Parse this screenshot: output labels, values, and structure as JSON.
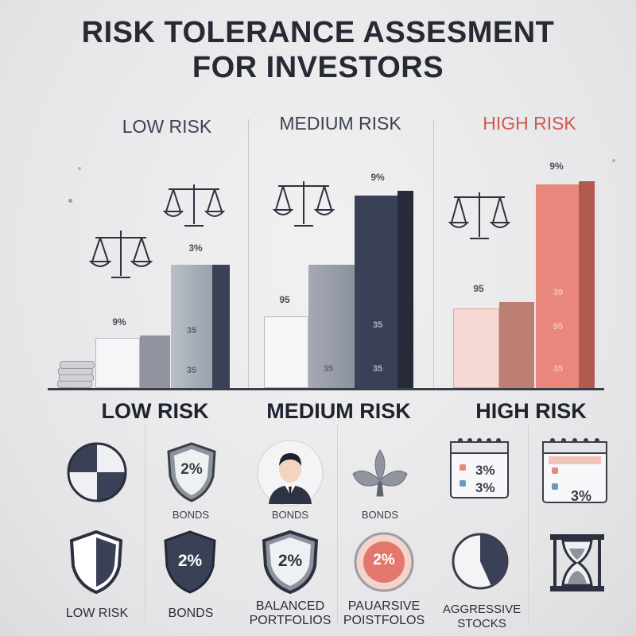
{
  "title": {
    "line1": "RISK TOLERANCE ASSESMENT",
    "line2": "FOR INVESTORS"
  },
  "column_headers": [
    {
      "label": "LOW RISK",
      "color": "#3b4152"
    },
    {
      "label": "MEDIUM RISK",
      "color": "#3b4152"
    },
    {
      "label": "HIGH RISK",
      "color": "#d2574e"
    }
  ],
  "chart": {
    "low": {
      "bar1_label": "9%",
      "bar2_label": "3%",
      "bar2_inner": [
        "35",
        "35"
      ]
    },
    "medium": {
      "bar1_label": "95",
      "bar2_label": "9%",
      "bar2_inner": [
        "35",
        "35"
      ]
    },
    "high": {
      "bar1_label": "95",
      "bar2_label": "9%",
      "bar2_inner": [
        "39",
        "95",
        "35"
      ]
    }
  },
  "section_headers": [
    "LOW RISK",
    "MEDIUM RISK",
    "HIGH RISK"
  ],
  "row1": {
    "shield_pct": "2%",
    "bonds_a": "BONDS",
    "bonds_b": "BONDS",
    "bonds_c": "BONDS",
    "calendar1": [
      "3%",
      "3%"
    ],
    "calendar2": [
      "3%"
    ]
  },
  "row2": {
    "low_risk": "LOW RISK",
    "shield_pct": "2%",
    "bonds": "BONDS",
    "balanced_pct": "2%",
    "balanced": [
      "BALANCED",
      "PORTFOLIOS"
    ],
    "passive_pct": "2%",
    "passive": [
      "PAUARSIVE",
      "POISTFOLOS"
    ],
    "aggressive": [
      "AGGRESSIVE",
      "STOCKS"
    ]
  },
  "colors": {
    "navy": "#3a4156",
    "gray": "#8f949e",
    "coral": "#e9877c",
    "pale": "#f4f4f6"
  }
}
